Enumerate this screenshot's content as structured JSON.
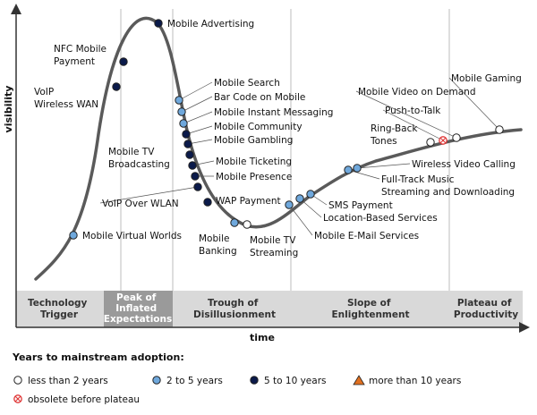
{
  "axes": {
    "y_label": "visibility",
    "x_label": "time"
  },
  "phases": [
    {
      "lines": [
        "Technology",
        "Trigger"
      ],
      "highlight": false
    },
    {
      "lines": [
        "Peak of",
        "Inflated",
        "Expectations"
      ],
      "highlight": true
    },
    {
      "lines": [
        "Trough of",
        "Disillusionment"
      ],
      "highlight": false
    },
    {
      "lines": [
        "Slope of",
        "Enlightenment"
      ],
      "highlight": false
    },
    {
      "lines": [
        "Plateau of",
        "Productivity"
      ],
      "highlight": false
    }
  ],
  "technologies": [
    {
      "name": "Mobile Virtual Worlds",
      "category": "2-5"
    },
    {
      "name": "VoIP Wireless WAN",
      "category": "5-10"
    },
    {
      "name": "NFC Mobile Payment",
      "category": "5-10"
    },
    {
      "name": "Mobile Advertising",
      "category": "5-10"
    },
    {
      "name": "Mobile Search",
      "category": "2-5"
    },
    {
      "name": "Bar Code on Mobile",
      "category": "2-5"
    },
    {
      "name": "Mobile Instant Messaging",
      "category": "2-5"
    },
    {
      "name": "Mobile Community",
      "category": "5-10"
    },
    {
      "name": "Mobile Gambling",
      "category": "5-10"
    },
    {
      "name": "Mobile TV Broadcasting",
      "category": "5-10"
    },
    {
      "name": "Mobile Ticketing",
      "category": "5-10"
    },
    {
      "name": "Mobile Presence",
      "category": "5-10"
    },
    {
      "name": "VoIP Over WLAN",
      "category": "5-10"
    },
    {
      "name": "WAP Payment",
      "category": "5-10"
    },
    {
      "name": "Mobile Banking",
      "category": "2-5"
    },
    {
      "name": "Mobile TV Streaming",
      "category": "<2"
    },
    {
      "name": "Mobile E-Mail Services",
      "category": "2-5"
    },
    {
      "name": "Location-Based Services",
      "category": "2-5"
    },
    {
      "name": "SMS Payment",
      "category": "2-5"
    },
    {
      "name": "Full-Track Music Streaming and Downloading",
      "category": "2-5"
    },
    {
      "name": "Wireless Video Calling",
      "category": "2-5"
    },
    {
      "name": "Ring-Back Tones",
      "category": "<2"
    },
    {
      "name": "Push-to-Talk",
      "category": "obsolete"
    },
    {
      "name": "Mobile Video on Demand",
      "category": "<2"
    },
    {
      "name": "Mobile Gaming",
      "category": "<2"
    }
  ],
  "label_lines": {
    "Mobile Virtual Worlds": [
      "Mobile Virtual Worlds"
    ],
    "VoIP Wireless WAN": [
      "VoIP",
      "Wireless WAN"
    ],
    "NFC Mobile Payment": [
      "NFC Mobile",
      "Payment"
    ],
    "Mobile Advertising": [
      "Mobile Advertising"
    ],
    "Mobile Search": [
      "Mobile Search"
    ],
    "Bar Code on Mobile": [
      "Bar Code on Mobile"
    ],
    "Mobile Instant Messaging": [
      "Mobile Instant Messaging"
    ],
    "Mobile Community": [
      "Mobile Community"
    ],
    "Mobile Gambling": [
      "Mobile Gambling"
    ],
    "Mobile TV Broadcasting": [
      "Mobile TV",
      "Broadcasting"
    ],
    "Mobile Ticketing": [
      "Mobile Ticketing"
    ],
    "Mobile Presence": [
      "Mobile Presence"
    ],
    "VoIP Over WLAN": [
      "VoIP Over WLAN"
    ],
    "WAP Payment": [
      "WAP Payment"
    ],
    "Mobile Banking": [
      "Mobile",
      "Banking"
    ],
    "Mobile TV Streaming": [
      "Mobile TV",
      "Streaming"
    ],
    "Mobile E-Mail Services": [
      "Mobile E-Mail Services"
    ],
    "Location-Based Services": [
      "Location-Based Services"
    ],
    "SMS Payment": [
      "SMS Payment"
    ],
    "Full-Track Music Streaming and Downloading": [
      "Full-Track Music",
      "Streaming and Downloading"
    ],
    "Wireless Video Calling": [
      "Wireless Video Calling"
    ],
    "Ring-Back Tones": [
      "Ring-Back",
      "Tones"
    ],
    "Push-to-Talk": [
      "Push-to-Talk"
    ],
    "Mobile Video on Demand": [
      "Mobile Video on Demand"
    ],
    "Mobile Gaming": [
      "Mobile Gaming"
    ]
  },
  "legend": {
    "title": "Years to mainstream adoption:",
    "items": [
      {
        "key": "<2",
        "label": "less than 2 years",
        "color": "#ffffff"
      },
      {
        "key": "2-5",
        "label": "2 to 5 years",
        "color": "#6fa8dc"
      },
      {
        "key": "5-10",
        "label": "5 to 10 years",
        "color": "#0b1a4a"
      },
      {
        "key": ">10",
        "label": "more than 10 years",
        "color": "#e07020"
      },
      {
        "key": "obsolete",
        "label": "obsolete before plateau",
        "color": "#e03a3a"
      }
    ]
  },
  "colors": {
    "curve": "#5a5a5a",
    "phase_band": "#d9d9d9",
    "phase_highlight": "#9a9a9a",
    "grid": "#bdbdbd"
  }
}
